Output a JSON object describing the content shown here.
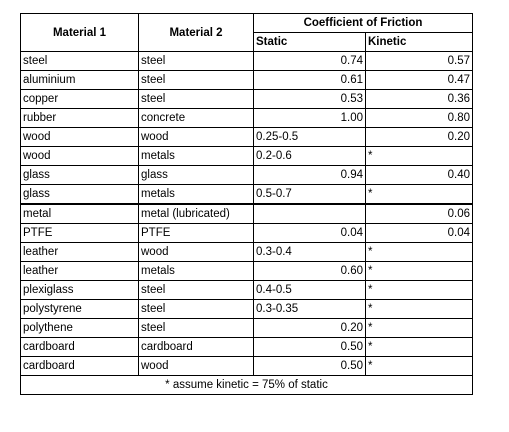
{
  "headers": {
    "material1": "Material 1",
    "material2": "Material 2",
    "coefficient": "Coefficient of Friction",
    "static": "Static",
    "kinetic": "Kinetic"
  },
  "rows": [
    {
      "m1": "steel",
      "m2": "steel",
      "static": "0.74",
      "kinetic": "0.57"
    },
    {
      "m1": "aluminium",
      "m2": "steel",
      "static": "0.61",
      "kinetic": "0.47"
    },
    {
      "m1": "copper",
      "m2": "steel",
      "static": "0.53",
      "kinetic": "0.36"
    },
    {
      "m1": "rubber",
      "m2": "concrete",
      "static": "1.00",
      "kinetic": "0.80"
    },
    {
      "m1": "wood",
      "m2": "wood",
      "static": "0.25-0.5",
      "kinetic": "0.20"
    },
    {
      "m1": "wood",
      "m2": "metals",
      "static": "0.2-0.6",
      "kinetic": "*"
    },
    {
      "m1": "glass",
      "m2": "glass",
      "static": "0.94",
      "kinetic": "0.40"
    },
    {
      "m1": "glass",
      "m2": "metals",
      "static": "0.5-0.7",
      "kinetic": "*"
    },
    {
      "m1": "metal",
      "m2": "metal (lubricated)",
      "static": "",
      "kinetic": "0.06"
    },
    {
      "m1": "PTFE",
      "m2": "PTFE",
      "static": "0.04",
      "kinetic": "0.04"
    },
    {
      "m1": "leather",
      "m2": "wood",
      "static": "0.3-0.4",
      "kinetic": "*"
    },
    {
      "m1": "leather",
      "m2": "metals",
      "static": "0.60",
      "kinetic": "*"
    },
    {
      "m1": "plexiglass",
      "m2": "steel",
      "static": "0.4-0.5",
      "kinetic": "*"
    },
    {
      "m1": "polystyrene",
      "m2": "steel",
      "static": "0.3-0.35",
      "kinetic": "*"
    },
    {
      "m1": "polythene",
      "m2": "steel",
      "static": "0.20",
      "kinetic": "*"
    },
    {
      "m1": "cardboard",
      "m2": "cardboard",
      "static": "0.50",
      "kinetic": "*"
    },
    {
      "m1": "cardboard",
      "m2": "wood",
      "static": "0.50",
      "kinetic": "*"
    }
  ],
  "footnote": "* assume kinetic = 75% of static"
}
